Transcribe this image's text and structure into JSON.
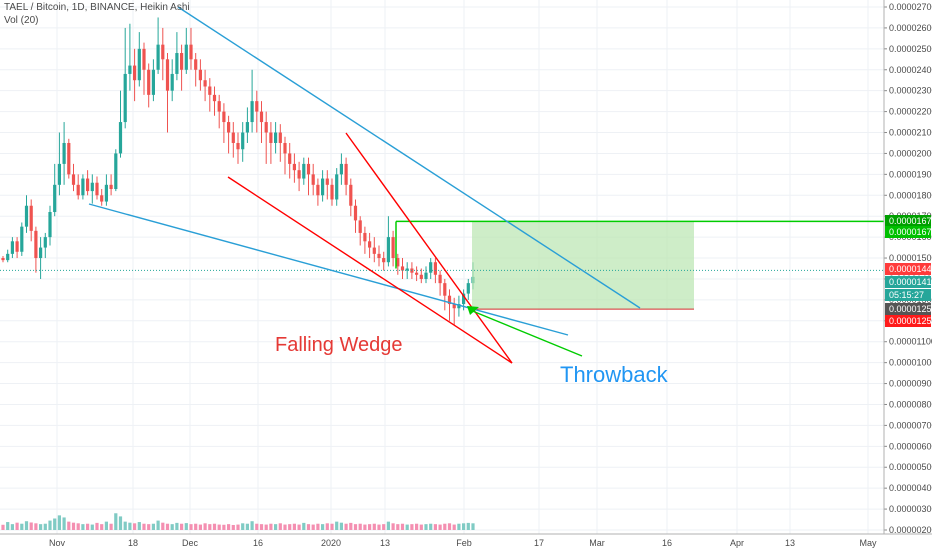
{
  "header": {
    "title": "TAEL / Bitcoin, 1D, BINANCE, Heikin Ashi",
    "volume_label": "Vol (20)"
  },
  "chart_data": {
    "type": "candlestick",
    "x_tick_labels": [
      "Nov",
      "18",
      "Dec",
      "16",
      "2020",
      "13",
      "Feb",
      "17",
      "Mar",
      "16",
      "Apr",
      "13",
      "May"
    ],
    "y_ticks": [
      2.7e-05,
      2.6e-05,
      2.5e-05,
      2.4e-05,
      2.3e-05,
      2.2e-05,
      2.1e-05,
      2e-05,
      1.9e-05,
      1.8e-05,
      1.7e-05,
      1.6e-05,
      1.5e-05,
      1.4e-05,
      1.3e-05,
      1.2e-05,
      1.1e-05,
      1e-05,
      9e-06,
      8e-06,
      7e-06,
      6e-06,
      5e-06,
      4e-06,
      3e-06,
      2e-06
    ],
    "y_tick_labels": [
      "0.00002700",
      "0.00002600",
      "0.00002500",
      "0.00002400",
      "0.00002300",
      "0.00002200",
      "0.00002100",
      "0.00002000",
      "0.00001900",
      "0.00001800",
      "0.00001700",
      "0.00001600",
      "0.00001500",
      "0.00001400",
      "0.00001300",
      "0.00001200",
      "0.00001100",
      "0.00001000",
      "0.00000900",
      "0.00000800",
      "0.00000700",
      "0.00000600",
      "0.00000500",
      "0.00000400",
      "0.00000300",
      "0.00000200"
    ],
    "price_tags": [
      {
        "label": "0.00001675",
        "color": "#00a000"
      },
      {
        "label": "0.00001675",
        "color": "#00c000"
      },
      {
        "label": "0.00001441",
        "color": "#ff3b3b"
      },
      {
        "label": "0.00001410",
        "color": "#26a69a"
      },
      {
        "label": "05:15:27",
        "color": "#26a69a"
      },
      {
        "label": "0.00001256",
        "color": "#555555"
      },
      {
        "label": "0.00001255",
        "color": "#ff1a1a"
      }
    ],
    "annotations": [
      {
        "text": "Falling Wedge",
        "color": "#e53935"
      },
      {
        "text": "Throwback",
        "color": "#2196f3"
      }
    ],
    "colors": {
      "up": "#26a69a",
      "down": "#ef5350",
      "vol_up": "#80cbc4",
      "vol_down": "#f48fb1",
      "wedge": "#ff0000",
      "channel": "#2a9fd6",
      "target": "#00cc00"
    },
    "candles": [
      [
        1.5e-05,
        1.49e-05,
        1.51e-05,
        1.48e-05
      ],
      [
        1.49e-05,
        1.52e-05,
        1.54e-05,
        1.48e-05
      ],
      [
        1.52e-05,
        1.58e-05,
        1.6e-05,
        1.5e-05
      ],
      [
        1.58e-05,
        1.53e-05,
        1.6e-05,
        1.5e-05
      ],
      [
        1.53e-05,
        1.65e-05,
        1.67e-05,
        1.51e-05
      ],
      [
        1.65e-05,
        1.75e-05,
        1.8e-05,
        1.62e-05
      ],
      [
        1.75e-05,
        1.63e-05,
        1.78e-05,
        1.58e-05
      ],
      [
        1.63e-05,
        1.5e-05,
        1.65e-05,
        1.43e-05
      ],
      [
        1.5e-05,
        1.55e-05,
        1.6e-05,
        1.4e-05
      ],
      [
        1.55e-05,
        1.6e-05,
        1.62e-05,
        1.5e-05
      ],
      [
        1.6e-05,
        1.72e-05,
        1.75e-05,
        1.56e-05
      ],
      [
        1.72e-05,
        1.85e-05,
        1.95e-05,
        1.7e-05
      ],
      [
        1.85e-05,
        1.95e-05,
        2.1e-05,
        1.8e-05
      ],
      [
        1.95e-05,
        2.05e-05,
        2.15e-05,
        1.85e-05
      ],
      [
        2.05e-05,
        1.9e-05,
        2.07e-05,
        1.88e-05
      ],
      [
        1.9e-05,
        1.85e-05,
        1.95e-05,
        1.82e-05
      ],
      [
        1.85e-05,
        1.8e-05,
        1.9e-05,
        1.78e-05
      ],
      [
        1.8e-05,
        1.88e-05,
        1.9e-05,
        1.78e-05
      ],
      [
        1.88e-05,
        1.82e-05,
        1.92e-05,
        1.8e-05
      ],
      [
        1.82e-05,
        1.86e-05,
        1.9e-05,
        1.76e-05
      ],
      [
        1.86e-05,
        1.8e-05,
        1.89e-05,
        1.78e-05
      ],
      [
        1.8e-05,
        1.77e-05,
        1.83e-05,
        1.75e-05
      ],
      [
        1.77e-05,
        1.85e-05,
        1.9e-05,
        1.75e-05
      ],
      [
        1.85e-05,
        1.83e-05,
        1.9e-05,
        1.8e-05
      ],
      [
        1.83e-05,
        2e-05,
        2.02e-05,
        1.82e-05
      ],
      [
        2e-05,
        2.15e-05,
        2.3e-05,
        1.98e-05
      ],
      [
        2.15e-05,
        2.38e-05,
        2.6e-05,
        2.12e-05
      ],
      [
        2.38e-05,
        2.42e-05,
        2.62e-05,
        2.3e-05
      ],
      [
        2.42e-05,
        2.35e-05,
        2.5e-05,
        2.25e-05
      ],
      [
        2.35e-05,
        2.5e-05,
        2.58e-05,
        2.32e-05
      ],
      [
        2.5e-05,
        2.4e-05,
        2.53e-05,
        2.28e-05
      ],
      [
        2.4e-05,
        2.28e-05,
        2.43e-05,
        2.22e-05
      ],
      [
        2.28e-05,
        2.4e-05,
        2.45e-05,
        2.25e-05
      ],
      [
        2.4e-05,
        2.52e-05,
        2.65e-05,
        2.38e-05
      ],
      [
        2.52e-05,
        2.45e-05,
        2.6e-05,
        2.35e-05
      ],
      [
        2.45e-05,
        2.3e-05,
        2.48e-05,
        2.1e-05
      ],
      [
        2.3e-05,
        2.38e-05,
        2.45e-05,
        2.25e-05
      ],
      [
        2.38e-05,
        2.48e-05,
        2.58e-05,
        2.35e-05
      ],
      [
        2.48e-05,
        2.4e-05,
        2.52e-05,
        2.3e-05
      ],
      [
        2.4e-05,
        2.52e-05,
        2.6e-05,
        2.38e-05
      ],
      [
        2.52e-05,
        2.45e-05,
        2.6e-05,
        2.4e-05
      ],
      [
        2.45e-05,
        2.4e-05,
        2.48e-05,
        2.32e-05
      ],
      [
        2.4e-05,
        2.35e-05,
        2.45e-05,
        2.3e-05
      ],
      [
        2.35e-05,
        2.32e-05,
        2.4e-05,
        2.25e-05
      ],
      [
        2.32e-05,
        2.28e-05,
        2.36e-05,
        2.2e-05
      ],
      [
        2.28e-05,
        2.25e-05,
        2.32e-05,
        2.18e-05
      ],
      [
        2.25e-05,
        2.2e-05,
        2.28e-05,
        2.12e-05
      ],
      [
        2.2e-05,
        2.15e-05,
        2.24e-05,
        2.05e-05
      ],
      [
        2.15e-05,
        2.1e-05,
        2.18e-05,
        2e-05
      ],
      [
        2.1e-05,
        2.05e-05,
        2.15e-05,
        1.98e-05
      ],
      [
        2.05e-05,
        2.02e-05,
        2.1e-05,
        1.95e-05
      ],
      [
        2.02e-05,
        2.1e-05,
        2.15e-05,
        1.96e-05
      ],
      [
        2.1e-05,
        2.15e-05,
        2.22e-05,
        2.05e-05
      ],
      [
        2.15e-05,
        2.25e-05,
        2.4e-05,
        2.1e-05
      ],
      [
        2.25e-05,
        2.2e-05,
        2.3e-05,
        2.1e-05
      ],
      [
        2.2e-05,
        2.15e-05,
        2.25e-05,
        2.05e-05
      ],
      [
        2.15e-05,
        2.1e-05,
        2.2e-05,
        1.95e-05
      ],
      [
        2.1e-05,
        2.05e-05,
        2.15e-05,
        1.95e-05
      ],
      [
        2.05e-05,
        2.1e-05,
        2.15e-05,
        2e-05
      ],
      [
        2.1e-05,
        2.05e-05,
        2.14e-05,
        1.96e-05
      ],
      [
        2.05e-05,
        2e-05,
        2.08e-05,
        1.9e-05
      ],
      [
        2e-05,
        1.95e-05,
        2.05e-05,
        1.88e-05
      ],
      [
        1.95e-05,
        1.92e-05,
        2e-05,
        1.86e-05
      ],
      [
        1.92e-05,
        1.88e-05,
        1.96e-05,
        1.82e-05
      ],
      [
        1.88e-05,
        1.95e-05,
        1.98e-05,
        1.85e-05
      ],
      [
        1.95e-05,
        1.9e-05,
        1.98e-05,
        1.8e-05
      ],
      [
        1.9e-05,
        1.85e-05,
        1.95e-05,
        1.8e-05
      ],
      [
        1.85e-05,
        1.8e-05,
        1.88e-05,
        1.75e-05
      ],
      [
        1.8e-05,
        1.88e-05,
        1.92e-05,
        1.77e-05
      ],
      [
        1.88e-05,
        1.85e-05,
        1.92e-05,
        1.78e-05
      ],
      [
        1.85e-05,
        1.78e-05,
        1.88e-05,
        1.75e-05
      ],
      [
        1.78e-05,
        1.9e-05,
        1.93e-05,
        1.75e-05
      ],
      [
        1.9e-05,
        1.95e-05,
        2e-05,
        1.85e-05
      ],
      [
        1.95e-05,
        1.85e-05,
        1.98e-05,
        1.8e-05
      ],
      [
        1.85e-05,
        1.75e-05,
        1.88e-05,
        1.7e-05
      ],
      [
        1.75e-05,
        1.68e-05,
        1.78e-05,
        1.62e-05
      ],
      [
        1.68e-05,
        1.62e-05,
        1.7e-05,
        1.56e-05
      ],
      [
        1.62e-05,
        1.58e-05,
        1.65e-05,
        1.52e-05
      ],
      [
        1.58e-05,
        1.55e-05,
        1.62e-05,
        1.5e-05
      ],
      [
        1.55e-05,
        1.52e-05,
        1.6e-05,
        1.48e-05
      ],
      [
        1.52e-05,
        1.5e-05,
        1.56e-05,
        1.46e-05
      ],
      [
        1.5e-05,
        1.48e-05,
        1.53e-05,
        1.44e-05
      ],
      [
        1.48e-05,
        1.6e-05,
        1.7e-05,
        1.46e-05
      ],
      [
        1.6e-05,
        1.5e-05,
        1.63e-05,
        1.46e-05
      ],
      [
        1.5e-05,
        1.46e-05,
        1.52e-05,
        1.42e-05
      ],
      [
        1.46e-05,
        1.44e-05,
        1.5e-05,
        1.4e-05
      ],
      [
        1.44e-05,
        1.45e-05,
        1.48e-05,
        1.4e-05
      ],
      [
        1.45e-05,
        1.43e-05,
        1.48e-05,
        1.4e-05
      ],
      [
        1.43e-05,
        1.42e-05,
        1.46e-05,
        1.39e-05
      ],
      [
        1.42e-05,
        1.4e-05,
        1.45e-05,
        1.38e-05
      ],
      [
        1.4e-05,
        1.43e-05,
        1.46e-05,
        1.38e-05
      ],
      [
        1.43e-05,
        1.48e-05,
        1.5e-05,
        1.4e-05
      ],
      [
        1.48e-05,
        1.42e-05,
        1.5e-05,
        1.38e-05
      ],
      [
        1.42e-05,
        1.38e-05,
        1.44e-05,
        1.32e-05
      ],
      [
        1.38e-05,
        1.32e-05,
        1.4e-05,
        1.25e-05
      ],
      [
        1.32e-05,
        1.28e-05,
        1.35e-05,
        1.2e-05
      ],
      [
        1.28e-05,
        1.26e-05,
        1.31e-05,
        1.18e-05
      ],
      [
        1.26e-05,
        1.28e-05,
        1.32e-05,
        1.22e-05
      ],
      [
        1.28e-05,
        1.33e-05,
        1.35e-05,
        1.25e-05
      ],
      [
        1.33e-05,
        1.38e-05,
        1.4e-05,
        1.3e-05
      ],
      [
        1.38e-05,
        1.41e-05,
        1.48e-05,
        1.35e-05
      ]
    ],
    "volumes": [
      2.5e-07,
      3.8e-07,
      2.8e-07,
      3.5e-07,
      3e-07,
      4.2e-07,
      3.6e-07,
      3.2e-07,
      2.8e-07,
      3e-07,
      4.5e-07,
      5.5e-07,
      7e-07,
      6e-07,
      4e-07,
      3.5e-07,
      3.2e-07,
      2.8e-07,
      3e-07,
      2.6e-07,
      3.4e-07,
      2.8e-07,
      4e-07,
      3e-07,
      8e-07,
      6.5e-07,
      4e-07,
      3.5e-07,
      3.2e-07,
      3.8e-07,
      3e-07,
      2.8e-07,
      3e-07,
      4.5e-07,
      3.5e-07,
      3e-07,
      2.8e-07,
      3.4e-07,
      3e-07,
      3.3e-07,
      2.8e-07,
      3e-07,
      2.6e-07,
      3.2e-07,
      2.8e-07,
      3e-07,
      2.6e-07,
      2.5e-07,
      2.8e-07,
      2.4e-07,
      2.6e-07,
      3.2e-07,
      3e-07,
      4.2e-07,
      3e-07,
      2.8e-07,
      2.6e-07,
      3e-07,
      2.8e-07,
      3.2e-07,
      2.6e-07,
      2.8e-07,
      3e-07,
      2.6e-07,
      3.4e-07,
      2.8e-07,
      2.6e-07,
      3e-07,
      2.8e-07,
      3.2e-07,
      3e-07,
      4e-07,
      3.5e-07,
      3e-07,
      3.4e-07,
      2.8e-07,
      3e-07,
      2.6e-07,
      2.8e-07,
      3e-07,
      2.6e-07,
      2.8e-07,
      4e-07,
      3.2e-07,
      2.8e-07,
      3e-07,
      2.6e-07,
      2.8e-07,
      3e-07,
      2.6e-07,
      2.8e-07,
      3e-07,
      2.8e-07,
      2.6e-07,
      3e-07,
      3.2e-07,
      2.6e-07,
      3e-07,
      3.2e-07,
      3.4e-07,
      3.2e-07
    ]
  }
}
